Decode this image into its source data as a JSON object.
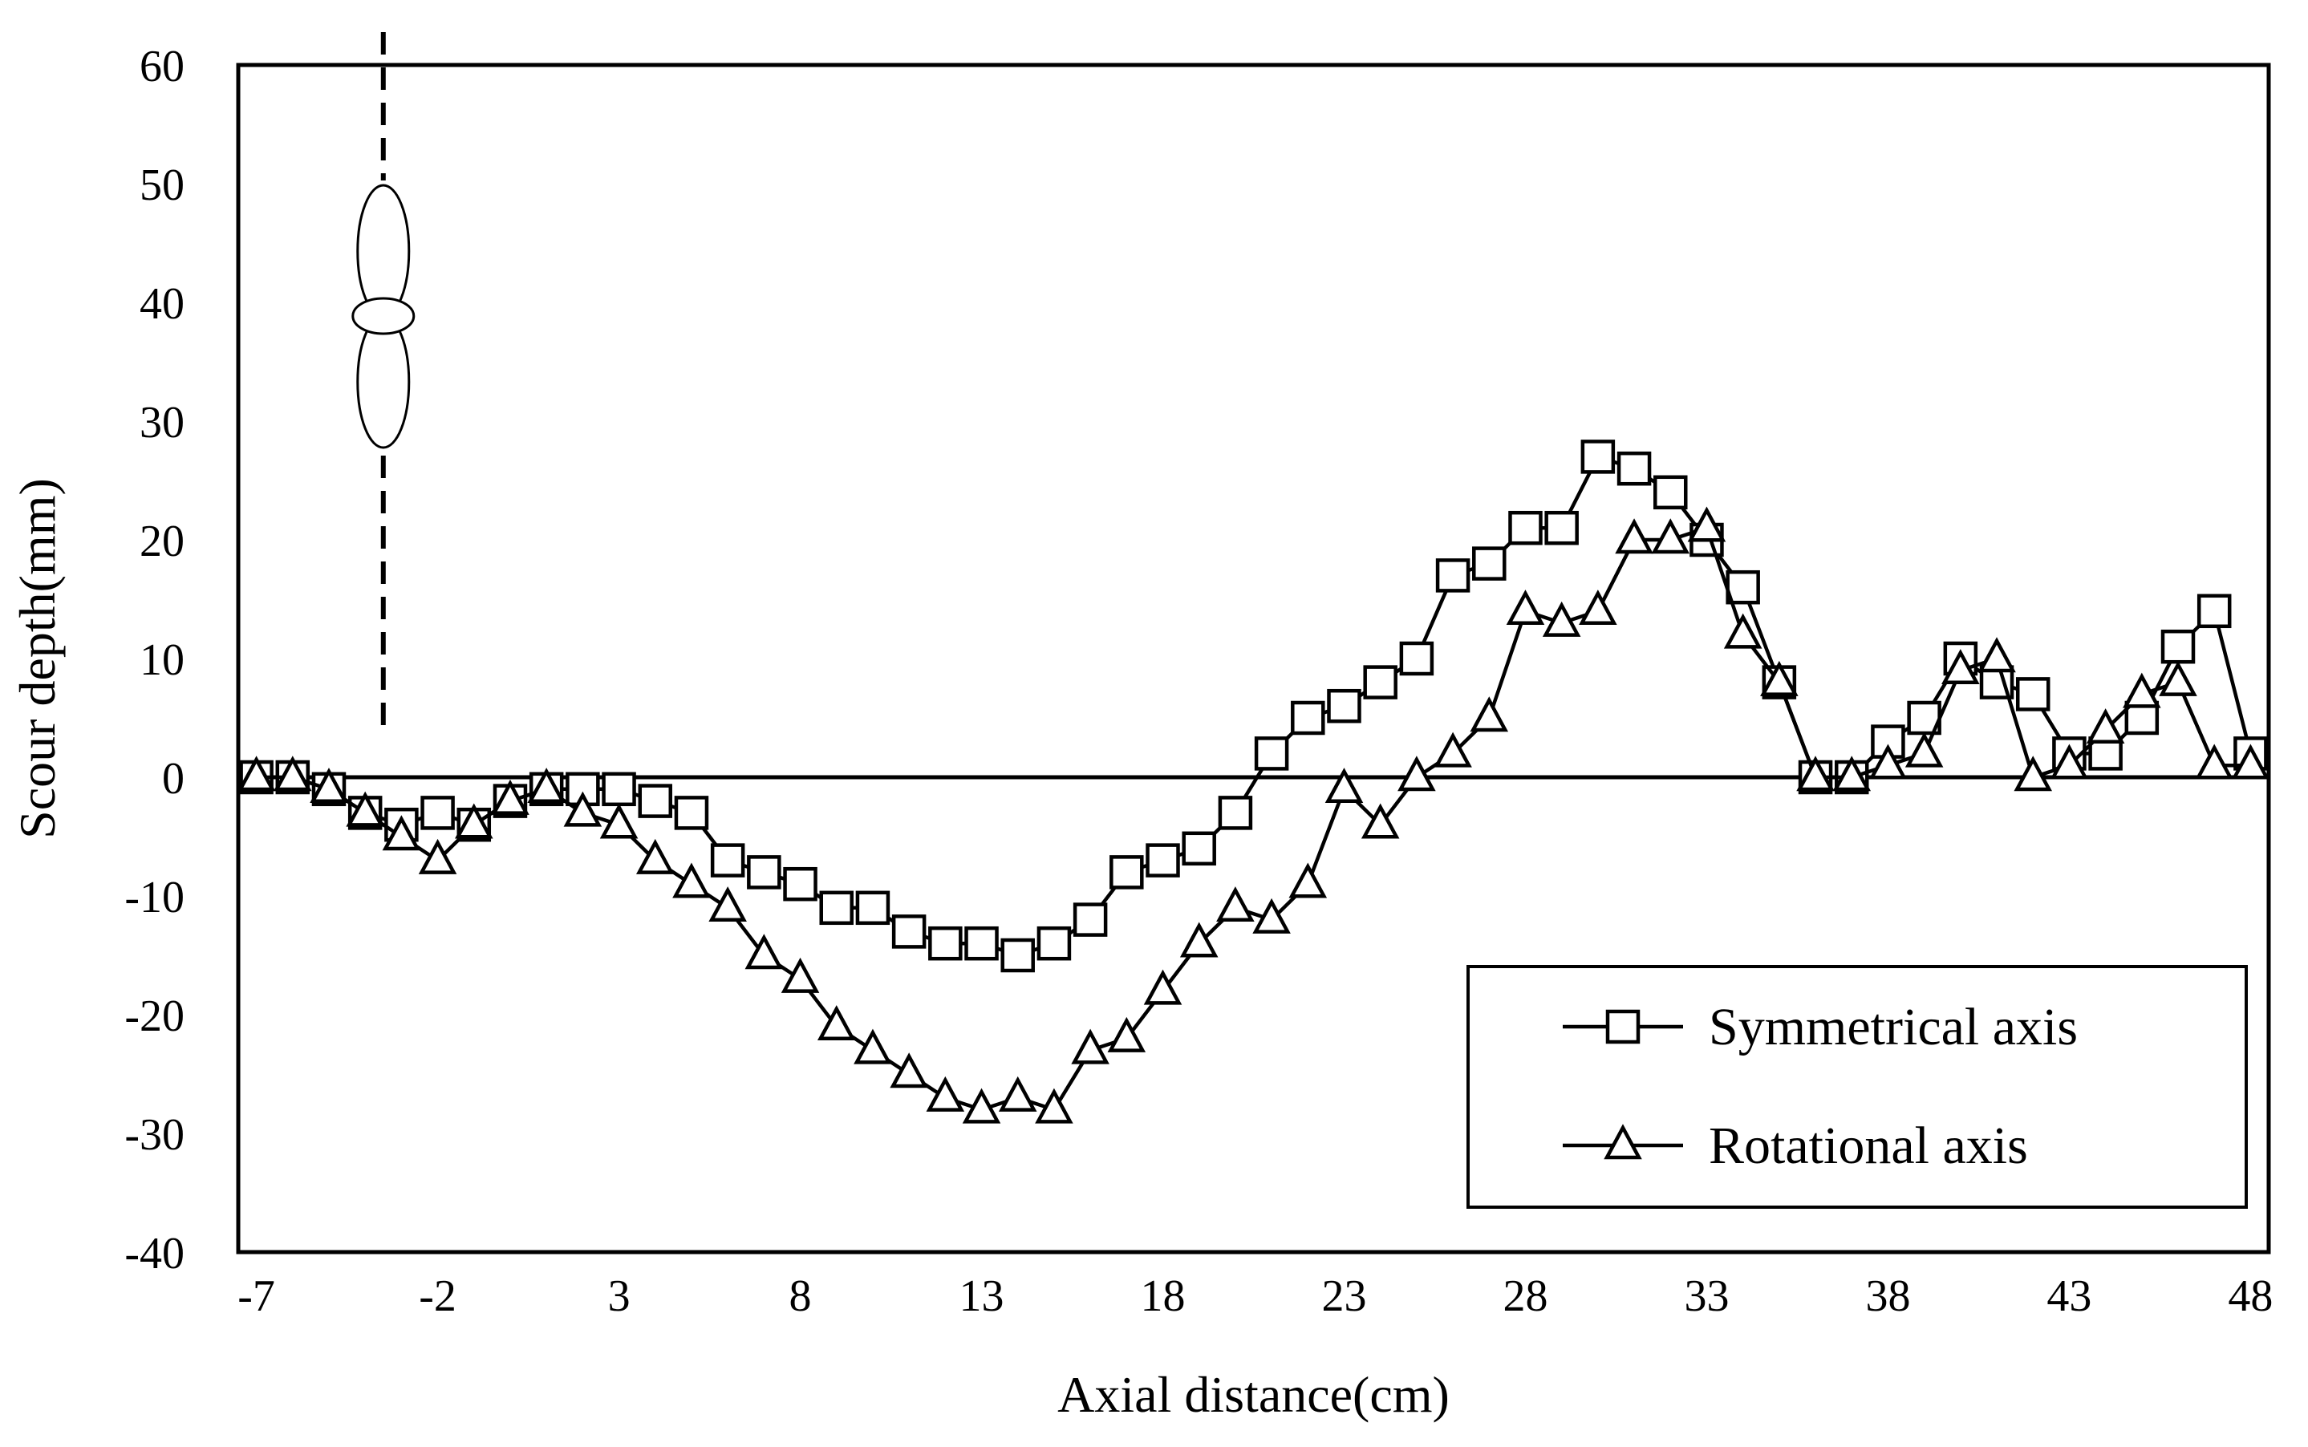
{
  "chart_data": {
    "type": "line",
    "title": "",
    "xlabel": "Axial distance(cm)",
    "ylabel": "Scour depth(mm)",
    "xlim": [
      -7.5,
      48.5
    ],
    "ylim": [
      -40,
      60
    ],
    "xticks": [
      -7,
      -2,
      3,
      8,
      13,
      18,
      23,
      28,
      33,
      38,
      43,
      48
    ],
    "yticks": [
      60,
      50,
      40,
      30,
      20,
      10,
      0,
      -10,
      -20,
      -30,
      -40
    ],
    "grid": false,
    "legend_position": "bottom-right",
    "reference_line": {
      "axis": "y",
      "value": 0
    },
    "annotation": {
      "type": "propeller-sketch",
      "x": -3.5,
      "dashed_vertical_line": true
    },
    "x": [
      -7,
      -6,
      -5,
      -4,
      -3,
      -2,
      -1,
      0,
      1,
      2,
      3,
      4,
      5,
      6,
      7,
      8,
      9,
      10,
      11,
      12,
      13,
      14,
      15,
      16,
      17,
      18,
      19,
      20,
      21,
      22,
      23,
      24,
      25,
      26,
      27,
      28,
      29,
      30,
      31,
      32,
      33,
      34,
      35,
      36,
      37,
      38,
      39,
      40,
      41,
      42,
      43,
      44,
      45,
      46,
      47,
      48
    ],
    "series": [
      {
        "name": "Symmetrical axis",
        "marker": "square",
        "values": [
          0,
          0,
          -1,
          -3,
          -4,
          -3,
          -4,
          -2,
          -1,
          -1,
          -1,
          -2,
          -3,
          -7,
          -8,
          -9,
          -11,
          -11,
          -13,
          -14,
          -14,
          -15,
          -14,
          -12,
          -8,
          -7,
          -6,
          -3,
          2,
          5,
          6,
          8,
          10,
          17,
          18,
          21,
          21,
          27,
          26,
          24,
          20,
          16,
          8,
          0,
          0,
          3,
          5,
          10,
          8,
          7,
          2,
          2,
          5,
          11,
          14,
          2
        ]
      },
      {
        "name": "Rotational axis",
        "marker": "triangle",
        "values": [
          0,
          0,
          -1,
          -3,
          -5,
          -7,
          -4,
          -2,
          -1,
          -3,
          -4,
          -7,
          -9,
          -11,
          -15,
          -17,
          -21,
          -23,
          -25,
          -27,
          -28,
          -27,
          -28,
          -23,
          -22,
          -18,
          -14,
          -11,
          -12,
          -9,
          -1,
          -4,
          0,
          2,
          5,
          14,
          13,
          14,
          20,
          20,
          21,
          12,
          8,
          0,
          0,
          1,
          2,
          9,
          10,
          0,
          1,
          4,
          7,
          8,
          1,
          1
        ]
      }
    ]
  }
}
